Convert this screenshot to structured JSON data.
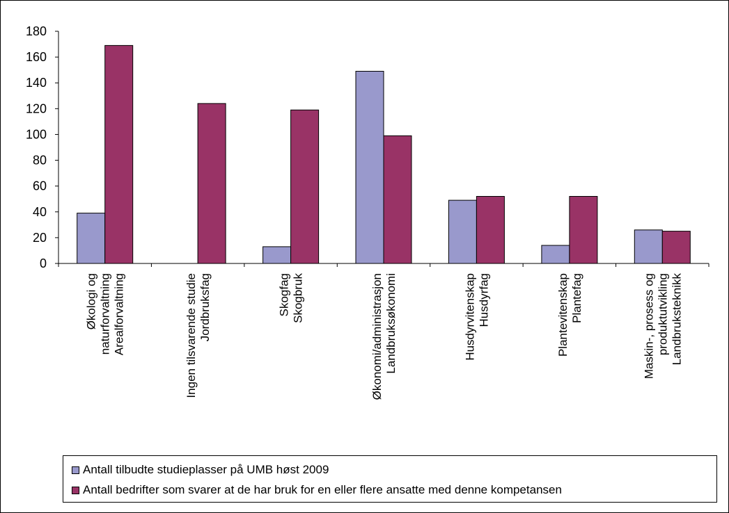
{
  "colors": {
    "series1": "#9999CC",
    "series2": "#993366",
    "axis": "#000000"
  },
  "chart_data": {
    "type": "bar",
    "categories": [
      [
        "Økologi og",
        "naturforvaltning",
        "Arealforvaltning"
      ],
      [
        "Ingen tilsvarende studie",
        "Jordbruksfag"
      ],
      [
        "Skogfag",
        "Skogbruk"
      ],
      [
        "Økonomi/administrasjon",
        "Landbruksøkonomi"
      ],
      [
        "Husdyrvitenskap",
        "Husdyrfag"
      ],
      [
        "Plantevitenskap",
        "Plantefag"
      ],
      [
        "Maskin-, prosess og",
        "produktutvikling",
        "Landbruksteknikk"
      ]
    ],
    "series": [
      {
        "name": "Antall tilbudte studieplasser på UMB høst 2009",
        "values": [
          39,
          0,
          13,
          149,
          49,
          14,
          26
        ]
      },
      {
        "name": "Antall bedrifter som svarer at de har bruk for en eller flere ansatte med denne kompetansen",
        "values": [
          169,
          124,
          119,
          99,
          52,
          52,
          25
        ]
      }
    ],
    "yticks": [
      "0",
      "20",
      "40",
      "60",
      "80",
      "100",
      "120",
      "140",
      "160",
      "180"
    ],
    "ylim": [
      0,
      180
    ],
    "legend_position": "bottom",
    "grid": false
  }
}
